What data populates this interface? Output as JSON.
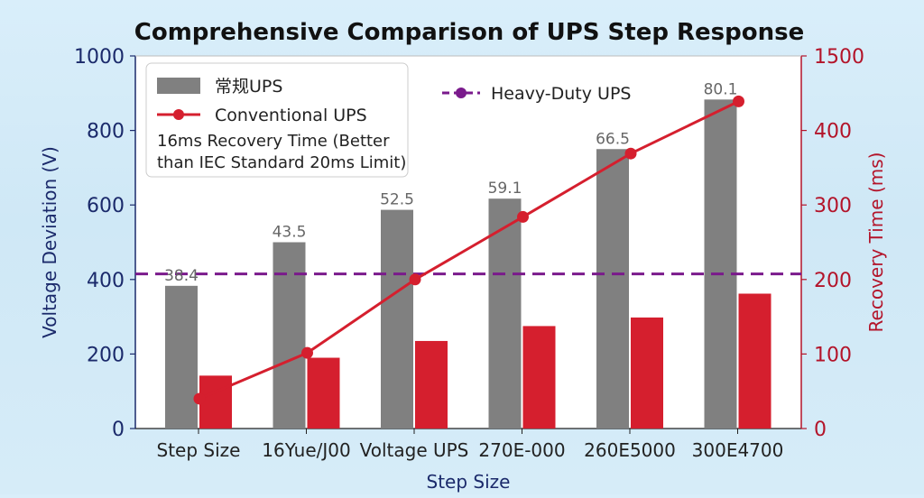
{
  "chart_data": {
    "type": "bar",
    "title": "Comprehensive Comparison of UPS Step Response",
    "xlabel": "Step Size",
    "ylabel_left": "Voltage Deviation (V)",
    "ylabel_right": "Recovery Time (ms)",
    "ylim_left": [
      0,
      1000
    ],
    "ylim_right": [
      0,
      1500
    ],
    "yticks_left": [
      0,
      200,
      400,
      600,
      800,
      1000
    ],
    "yticks_right": [
      0,
      100,
      200,
      300,
      400,
      1500
    ],
    "categories": [
      "Step Size",
      "16Yue/J00",
      "Voltage UPS",
      "270E-000",
      "260E5000",
      "300E4700"
    ],
    "series": [
      {
        "name": "常规UPS",
        "kind": "bar",
        "axis": "left",
        "color": "#808080",
        "values": [
          383,
          500,
          587,
          617,
          750,
          883
        ],
        "labels": [
          "38.4",
          "43.5",
          "52.5",
          "59.1",
          "66.5",
          "80.1"
        ]
      },
      {
        "name": "",
        "kind": "bar",
        "axis": "left",
        "color": "#d51f2e",
        "values": [
          142,
          190,
          235,
          275,
          298,
          362
        ]
      },
      {
        "name": "Conventional UPS",
        "kind": "line",
        "axis": "left",
        "color": "#d51f2e",
        "values": [
          80,
          203,
          400,
          568,
          738,
          878
        ]
      },
      {
        "name": "Heavy-Duty UPS",
        "kind": "hline",
        "axis": "left",
        "color": "#7a1a8c",
        "value": 415
      }
    ],
    "legend_note": "16ms Recovery Time (Better than IEC Standard 20ms Limit)",
    "legend_position": "top-left",
    "grid": false
  }
}
